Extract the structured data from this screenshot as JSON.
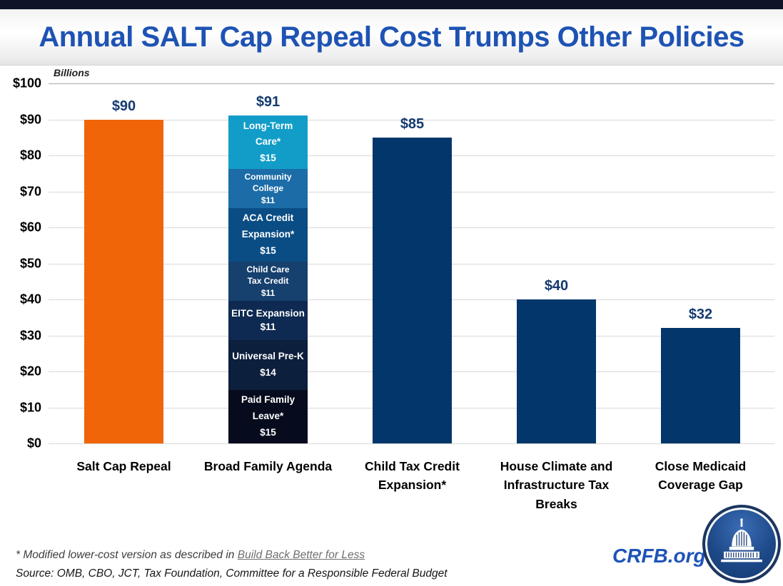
{
  "title": {
    "text": "Annual SALT Cap Repeal Cost Trumps Other Policies",
    "color": "#1e53b4"
  },
  "top_strip_color": "#0d1526",
  "chart_data": {
    "type": "bar",
    "title": "Annual SALT Cap Repeal Cost Trumps Other Policies",
    "ylabel": "Billions",
    "xlabel": "",
    "ylim": [
      0,
      100
    ],
    "ytick_step": 10,
    "yticks": [
      "$100",
      "$90",
      "$80",
      "$70",
      "$60",
      "$50",
      "$40",
      "$30",
      "$20",
      "$10",
      "$0"
    ],
    "grid": "horizontal",
    "legend": "none",
    "value_label_color": "#143a6f",
    "categories": [
      "Salt Cap Repeal",
      "Broad Family Agenda",
      "Child Tax Credit Expansion*",
      "House Climate and Infrastructure Tax Breaks",
      "Close Medicaid Coverage Gap"
    ],
    "bars": [
      {
        "label": "Salt Cap Repeal",
        "label_lines": [
          "Salt Cap Repeal"
        ],
        "value": 90,
        "display": "$90",
        "color": "#f06508"
      },
      {
        "label": "Broad Family Agenda",
        "label_lines": [
          "Broad Family Agenda"
        ],
        "value": 91,
        "display": "$91",
        "stacked": true,
        "segments": [
          {
            "name": "Long-Term Care*",
            "name_lines": [
              "Long-Term",
              "Care*"
            ],
            "value": 15,
            "display": "$15",
            "color": "#129dc9",
            "font": 13.5
          },
          {
            "name": "Community College",
            "name_lines": [
              "Community",
              "College"
            ],
            "value": 11,
            "display": "$11",
            "color": "#1b6ca7",
            "font": 12
          },
          {
            "name": "ACA Credit Expansion*",
            "name_lines": [
              "ACA Credit",
              "Expansion*"
            ],
            "value": 15,
            "display": "$15",
            "color": "#0a4d85",
            "font": 13.5
          },
          {
            "name": "Child Care Tax Credit",
            "name_lines": [
              "Child Care",
              "Tax Credit"
            ],
            "value": 11,
            "display": "$11",
            "color": "#16406e",
            "font": 12
          },
          {
            "name": "EITC Expansion",
            "name_lines": [
              "EITC Expansion"
            ],
            "value": 11,
            "display": "$11",
            "color": "#0e2a52",
            "font": 13.5
          },
          {
            "name": "Universal Pre-K",
            "name_lines": [
              "Universal Pre-K"
            ],
            "value": 14,
            "display": "$14",
            "color": "#0c1f3d",
            "font": 13.5
          },
          {
            "name": "Paid Family Leave*",
            "name_lines": [
              "Paid Family",
              "Leave*"
            ],
            "value": 15,
            "display": "$15",
            "color": "#060c1d",
            "font": 13.5
          }
        ]
      },
      {
        "label": "Child Tax Credit Expansion*",
        "label_lines": [
          "Child Tax Credit",
          "Expansion*"
        ],
        "value": 85,
        "display": "$85",
        "color": "#03366b"
      },
      {
        "label": "House Climate and Infrastructure Tax Breaks",
        "label_lines": [
          "House Climate and",
          "Infrastructure Tax",
          "Breaks"
        ],
        "value": 40,
        "display": "$40",
        "color": "#03366b"
      },
      {
        "label": "Close Medicaid Coverage Gap",
        "label_lines": [
          "Close Medicaid",
          "Coverage Gap"
        ],
        "value": 32,
        "display": "$32",
        "color": "#03366b"
      }
    ]
  },
  "footnotes": {
    "asterisk_prefix": "* Modified lower-cost version as described in ",
    "asterisk_link": "Build Back Better for Less",
    "source": "Source: OMB, CBO, JCT, Tax Foundation, Committee for a Responsible Federal Budget"
  },
  "branding": {
    "site": "CRFB.org",
    "logo": "capitol-icon",
    "accent_blue": "#1e53b8",
    "navy": "#03366b",
    "orange": "#f06508"
  }
}
